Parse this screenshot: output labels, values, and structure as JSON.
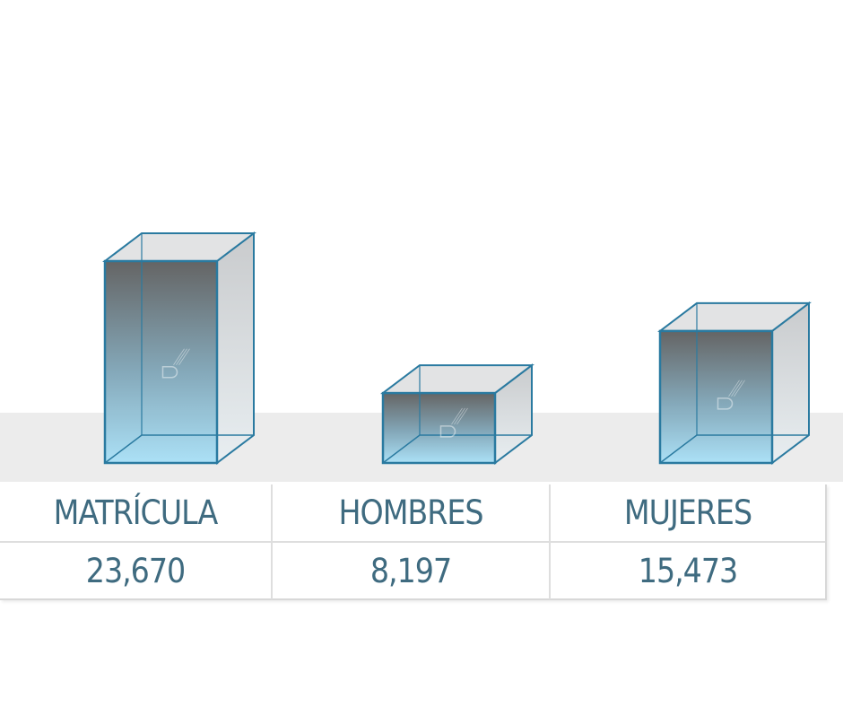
{
  "chart_data": {
    "type": "bar",
    "style": "3d-glass-boxes",
    "categories": [
      "MATRÍCULA",
      "HOMBRES",
      "MUJERES"
    ],
    "values": [
      23670,
      8197,
      15473
    ],
    "value_labels": [
      "23,670",
      "8,197",
      "15,473"
    ],
    "title": "",
    "xlabel": "",
    "ylabel": "",
    "grid": false,
    "colors": {
      "edge": "#2a7aa0",
      "top_fill": "#5f5f5f",
      "bottom_fill": "#a6def5",
      "side_fill": "#d6d9dc",
      "floor_band": "#ececec",
      "text": "#3f6b80"
    }
  }
}
